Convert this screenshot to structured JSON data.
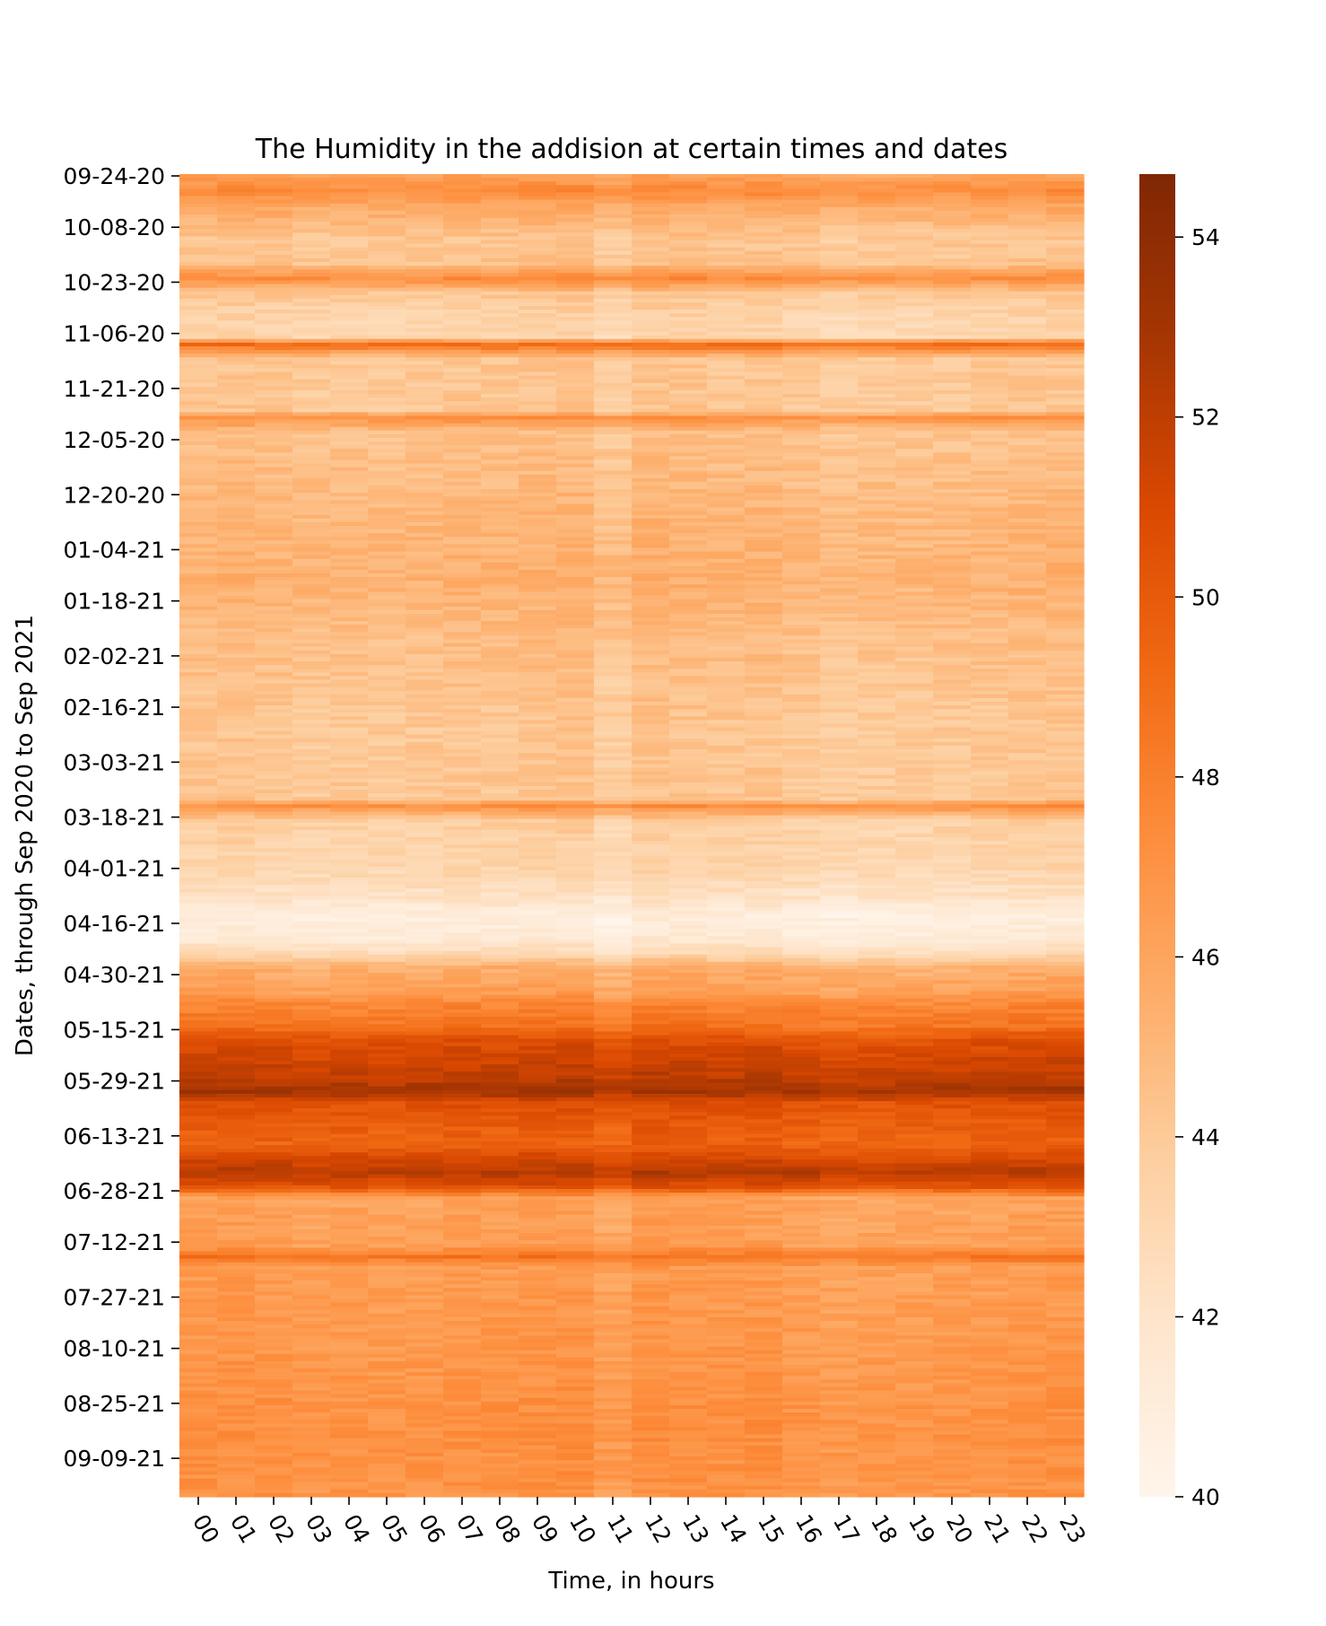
{
  "chart_data": {
    "type": "heatmap",
    "title": "The Humidity in the addision at certain times and dates",
    "xlabel": "Time, in hours",
    "ylabel": "Dates, through Sep 2020 to Sep 2021",
    "x_categories": [
      "00",
      "01",
      "02",
      "03",
      "04",
      "05",
      "06",
      "07",
      "08",
      "09",
      "10",
      "11",
      "12",
      "13",
      "14",
      "15",
      "16",
      "17",
      "18",
      "19",
      "20",
      "21",
      "22",
      "23"
    ],
    "y_tick_labels": [
      "09-24-20",
      "10-08-20",
      "10-23-20",
      "11-06-20",
      "11-21-20",
      "12-05-20",
      "12-20-20",
      "01-04-21",
      "01-18-21",
      "02-02-21",
      "02-16-21",
      "03-03-21",
      "03-18-21",
      "04-01-21",
      "04-16-21",
      "04-30-21",
      "05-15-21",
      "05-29-21",
      "06-13-21",
      "06-28-21",
      "07-12-21",
      "07-27-21",
      "08-10-21",
      "08-25-21",
      "09-09-21"
    ],
    "y_tick_day_offsets": [
      0,
      14,
      29,
      43,
      58,
      72,
      87,
      102,
      116,
      131,
      145,
      160,
      175,
      189,
      204,
      218,
      233,
      247,
      262,
      277,
      291,
      306,
      320,
      335,
      350
    ],
    "row_count": 361,
    "colorbar": {
      "min": 40,
      "max": 54.7,
      "ticks": [
        40,
        42,
        44,
        46,
        48,
        50,
        52,
        54
      ],
      "colormap": "Oranges",
      "stops": [
        "#fff5eb",
        "#fee6ce",
        "#fdd0a2",
        "#fdae6b",
        "#fd8d3c",
        "#f16913",
        "#d94801",
        "#a63603",
        "#7f2704"
      ]
    },
    "daily_mean_profile": [
      {
        "day": 0,
        "value": 46.0
      },
      {
        "day": 4,
        "value": 47.2
      },
      {
        "day": 8,
        "value": 45.8
      },
      {
        "day": 12,
        "value": 45.0
      },
      {
        "day": 18,
        "value": 44.0
      },
      {
        "day": 24,
        "value": 44.2
      },
      {
        "day": 28,
        "value": 47.2
      },
      {
        "day": 32,
        "value": 44.0
      },
      {
        "day": 38,
        "value": 43.2
      },
      {
        "day": 44,
        "value": 43.0
      },
      {
        "day": 46,
        "value": 48.8
      },
      {
        "day": 50,
        "value": 44.0
      },
      {
        "day": 64,
        "value": 44.0
      },
      {
        "day": 66,
        "value": 47.0
      },
      {
        "day": 70,
        "value": 44.3
      },
      {
        "day": 90,
        "value": 44.8
      },
      {
        "day": 110,
        "value": 45.2
      },
      {
        "day": 125,
        "value": 44.6
      },
      {
        "day": 150,
        "value": 44.0
      },
      {
        "day": 170,
        "value": 44.0
      },
      {
        "day": 172,
        "value": 47.0
      },
      {
        "day": 176,
        "value": 43.5
      },
      {
        "day": 190,
        "value": 43.0
      },
      {
        "day": 197,
        "value": 42.0
      },
      {
        "day": 202,
        "value": 40.7
      },
      {
        "day": 208,
        "value": 41.2
      },
      {
        "day": 212,
        "value": 42.5
      },
      {
        "day": 216,
        "value": 45.3
      },
      {
        "day": 223,
        "value": 46.2
      },
      {
        "day": 226,
        "value": 47.5
      },
      {
        "day": 232,
        "value": 48.5
      },
      {
        "day": 236,
        "value": 50.5
      },
      {
        "day": 240,
        "value": 51.0
      },
      {
        "day": 246,
        "value": 51.8
      },
      {
        "day": 250,
        "value": 52.8
      },
      {
        "day": 253,
        "value": 50.5
      },
      {
        "day": 258,
        "value": 49.8
      },
      {
        "day": 264,
        "value": 49.3
      },
      {
        "day": 268,
        "value": 50.8
      },
      {
        "day": 272,
        "value": 52.2
      },
      {
        "day": 276,
        "value": 50.2
      },
      {
        "day": 279,
        "value": 46.0
      },
      {
        "day": 292,
        "value": 46.2
      },
      {
        "day": 295,
        "value": 48.5
      },
      {
        "day": 298,
        "value": 46.3
      },
      {
        "day": 320,
        "value": 46.6
      },
      {
        "day": 340,
        "value": 47.0
      },
      {
        "day": 360,
        "value": 46.8
      }
    ],
    "hour_offsets": [
      0.2,
      0.3,
      0.2,
      0.0,
      0.1,
      0.0,
      0.1,
      0.2,
      0.2,
      0.3,
      0.4,
      -0.3,
      0.4,
      0.3,
      0.2,
      0.3,
      0.0,
      -0.2,
      -0.1,
      -0.1,
      0.0,
      0.1,
      0.2,
      0.3
    ],
    "grid": false
  }
}
